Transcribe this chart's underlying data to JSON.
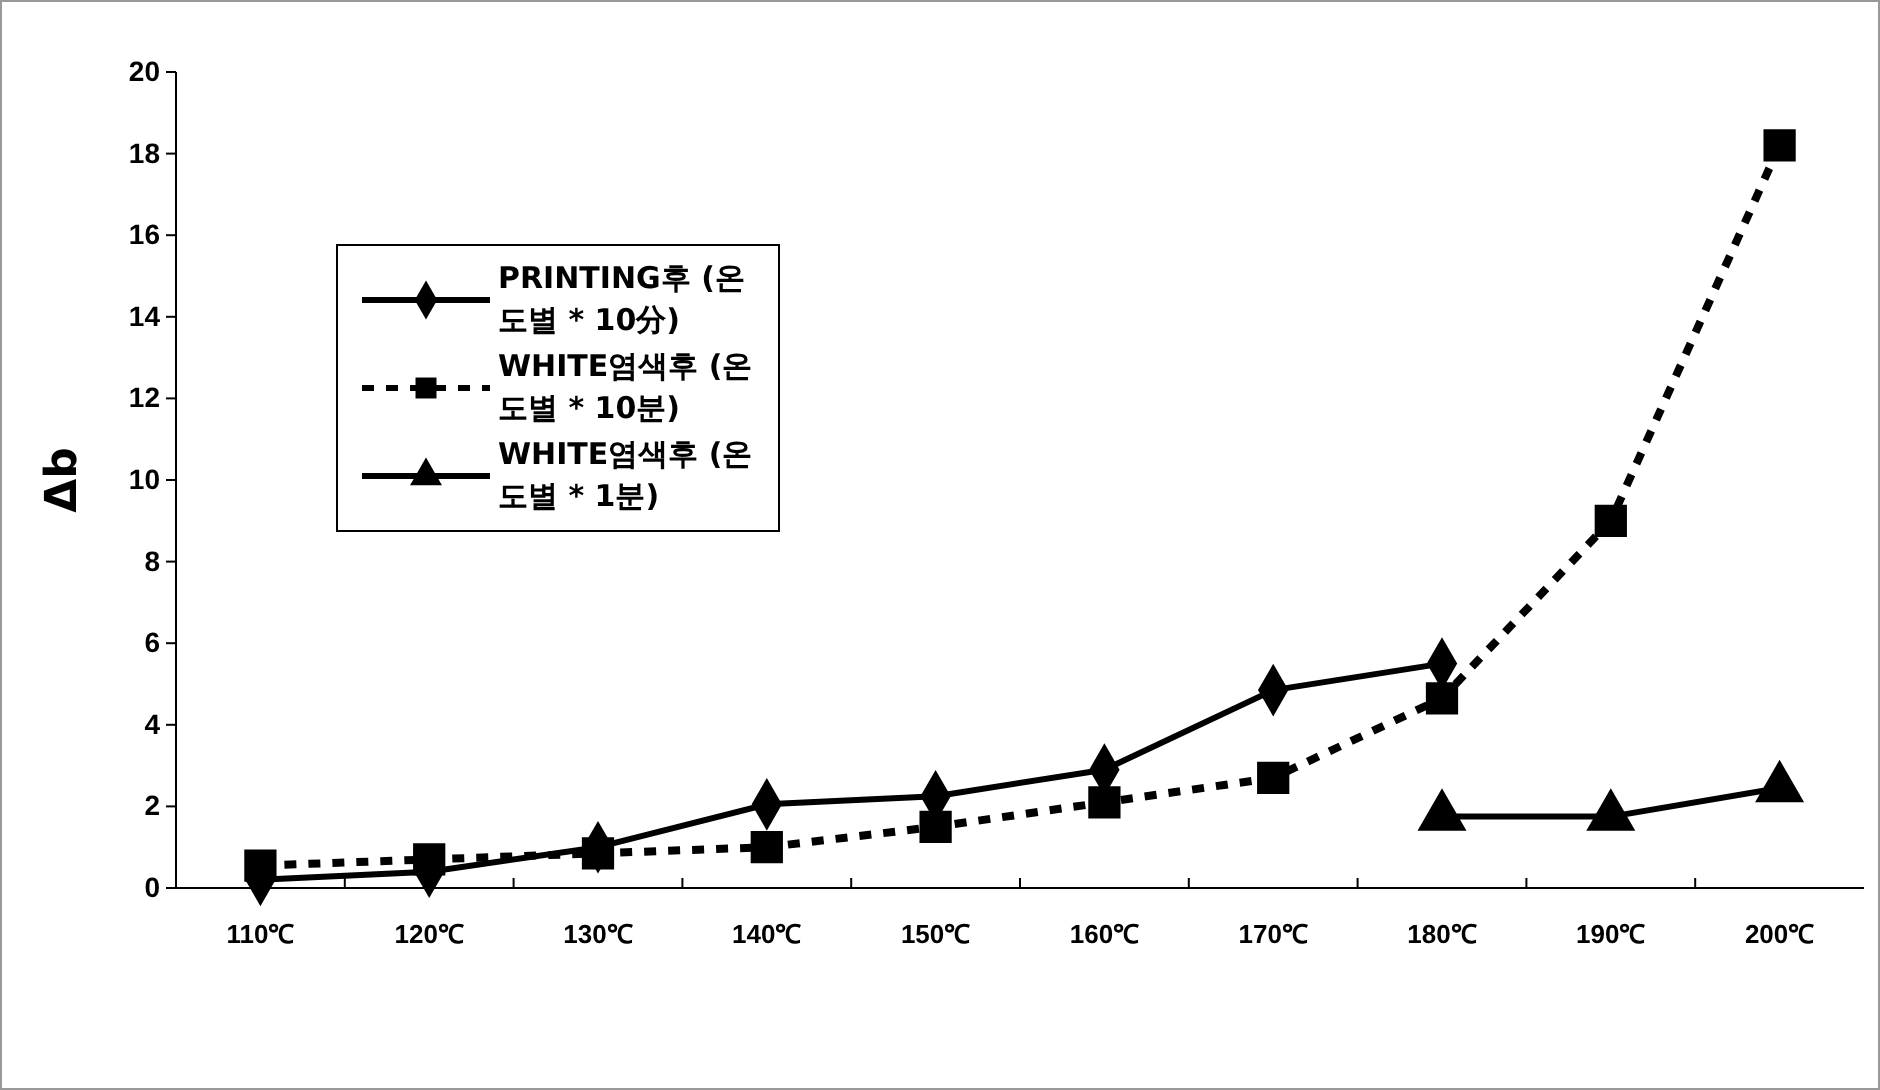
{
  "chart_data": {
    "type": "line",
    "ylabel": "Δb",
    "categories": [
      "110℃",
      "120℃",
      "130℃",
      "140℃",
      "150℃",
      "160℃",
      "170℃",
      "180℃",
      "190℃",
      "200℃"
    ],
    "ylim": [
      0,
      20
    ],
    "yticks": [
      0,
      2,
      4,
      6,
      8,
      10,
      12,
      14,
      16,
      18,
      20
    ],
    "grid": false,
    "legend": "top left",
    "series": [
      {
        "name": "PRINTING후 (온도별 * 10分)",
        "color": "#000000",
        "marker": "diamond",
        "line_style": "solid",
        "values": [
          0.2,
          0.4,
          1.0,
          2.05,
          2.25,
          2.9,
          4.85,
          5.5,
          null,
          null
        ]
      },
      {
        "name": "WHITE염색후 (온도별 * 10분)",
        "color": "#000000",
        "marker": "square",
        "line_style": "dashed",
        "values": [
          0.55,
          0.7,
          0.85,
          1.0,
          1.5,
          2.1,
          2.7,
          4.65,
          9.0,
          18.2
        ]
      },
      {
        "name": "WHITE염색후 (온도별 * 1분)",
        "color": "#000000",
        "marker": "triangle",
        "line_style": "solid",
        "values": [
          null,
          null,
          null,
          null,
          null,
          null,
          null,
          1.75,
          1.75,
          2.45
        ]
      }
    ]
  }
}
